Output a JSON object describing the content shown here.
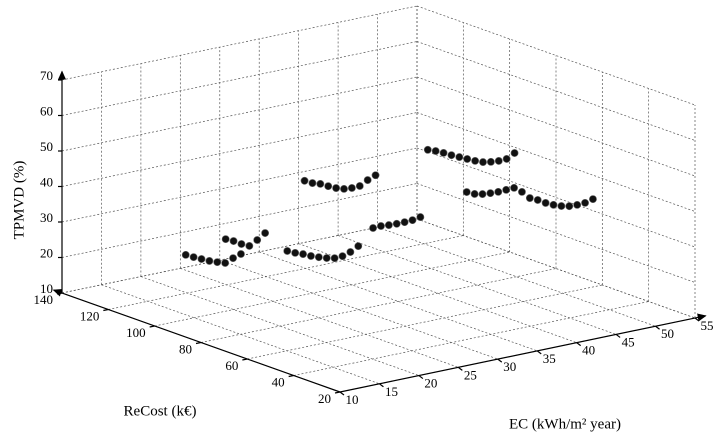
{
  "chart_data": {
    "type": "scatter3d",
    "xlabel": "EC (kWh/m² year)",
    "ylabel": "ReCost (k€)",
    "zlabel": "TPMVD (%)",
    "xlim": [
      10,
      55
    ],
    "xticks": [
      10,
      15,
      20,
      25,
      30,
      35,
      40,
      45,
      50,
      55
    ],
    "ylim": [
      20,
      140
    ],
    "yticks": [
      20,
      40,
      60,
      80,
      100,
      120,
      140
    ],
    "zlim": [
      10,
      70
    ],
    "zticks": [
      10,
      20,
      30,
      40,
      50,
      60,
      70
    ],
    "grid": true,
    "series": [
      {
        "color": "#111111",
        "x": [
          11,
          12,
          13,
          14,
          15,
          16,
          17,
          18,
          19,
          20,
          21,
          22,
          23,
          24,
          18,
          19,
          20,
          21,
          22,
          23,
          24,
          25,
          26,
          27,
          29,
          30,
          31,
          32,
          33,
          34,
          35,
          36,
          37,
          38,
          23,
          24,
          25,
          26,
          27,
          28,
          29,
          27,
          28,
          29,
          30,
          31,
          32,
          33,
          34,
          35,
          36,
          37,
          38,
          29,
          30,
          31,
          32,
          33,
          34,
          35,
          36,
          37,
          38,
          39,
          40,
          41,
          42,
          43,
          44,
          45
        ],
        "y": [
          90,
          90,
          90,
          90,
          90,
          90,
          90,
          90,
          100,
          100,
          100,
          100,
          100,
          100,
          70,
          70,
          70,
          70,
          70,
          70,
          70,
          70,
          70,
          70,
          100,
          100,
          100,
          100,
          100,
          100,
          100,
          100,
          100,
          100,
          50,
          50,
          50,
          50,
          50,
          50,
          50,
          40,
          40,
          40,
          40,
          40,
          40,
          40,
          40,
          40,
          40,
          40,
          40,
          30,
          30,
          30,
          30,
          30,
          30,
          30,
          30,
          30,
          30,
          30,
          30,
          30,
          30,
          30,
          30,
          30
        ],
        "z": [
          31.9,
          30.8,
          29.8,
          28.8,
          28.0,
          27.3,
          28.2,
          28.9,
          30.3,
          29.3,
          28.0,
          27.0,
          28.2,
          29.7,
          34.4,
          33.4,
          32.6,
          31.6,
          30.8,
          30.1,
          29.6,
          29.7,
          30.4,
          31.6,
          42.1,
          41.0,
          40.3,
          39.2,
          38.2,
          37.5,
          37.3,
          37.4,
          38.6,
          39.5,
          43.2,
          43.3,
          43.1,
          43.0,
          43.0,
          43.1,
          43.5,
          65.7,
          64.9,
          63.9,
          62.8,
          61.8,
          60.8,
          59.8,
          59.0,
          58.6,
          58.4,
          58.5,
          59.7,
          55.2,
          54.2,
          53.7,
          53.5,
          53.4,
          53.5,
          53.6,
          52.0,
          49.8,
          48.8,
          47.5,
          46.5,
          45.7,
          45.2,
          45.1,
          45.2,
          45.8
        ]
      }
    ]
  }
}
